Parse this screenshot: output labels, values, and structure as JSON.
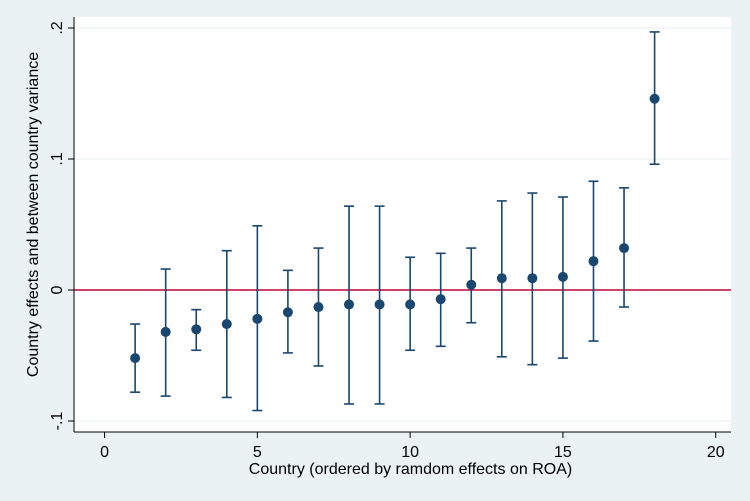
{
  "chart_data": {
    "type": "scatter",
    "subtype": "point-estimates-with-confidence-intervals",
    "xlabel": "Country (ordered by ramdom effects on ROA)",
    "ylabel": "Country effects and between country variance",
    "xlim": [
      -1,
      20.5
    ],
    "ylim": [
      -0.1,
      0.205
    ],
    "xticks": [
      0,
      5,
      10,
      15,
      20
    ],
    "xtick_labels": [
      "0",
      "5",
      "10",
      "15",
      "20"
    ],
    "yticks": [
      -0.1,
      0,
      0.1,
      0.2
    ],
    "ytick_labels": [
      "-.1",
      "0",
      ".1",
      ".2"
    ],
    "grid": true,
    "reference_line": {
      "y": 0
    },
    "points": [
      {
        "x": 1,
        "y": -0.052,
        "lo": -0.078,
        "hi": -0.026
      },
      {
        "x": 2,
        "y": -0.032,
        "lo": -0.081,
        "hi": 0.016
      },
      {
        "x": 3,
        "y": -0.03,
        "lo": -0.046,
        "hi": -0.015
      },
      {
        "x": 4,
        "y": -0.026,
        "lo": -0.082,
        "hi": 0.03
      },
      {
        "x": 5,
        "y": -0.022,
        "lo": -0.092,
        "hi": 0.049
      },
      {
        "x": 6,
        "y": -0.017,
        "lo": -0.048,
        "hi": 0.015
      },
      {
        "x": 7,
        "y": -0.013,
        "lo": -0.058,
        "hi": 0.032
      },
      {
        "x": 8,
        "y": -0.011,
        "lo": -0.087,
        "hi": 0.064
      },
      {
        "x": 9,
        "y": -0.011,
        "lo": -0.087,
        "hi": 0.064
      },
      {
        "x": 10,
        "y": -0.011,
        "lo": -0.046,
        "hi": 0.025
      },
      {
        "x": 11,
        "y": -0.007,
        "lo": -0.043,
        "hi": 0.028
      },
      {
        "x": 12,
        "y": 0.004,
        "lo": -0.025,
        "hi": 0.032
      },
      {
        "x": 13,
        "y": 0.009,
        "lo": -0.051,
        "hi": 0.068
      },
      {
        "x": 14,
        "y": 0.009,
        "lo": -0.057,
        "hi": 0.074
      },
      {
        "x": 15,
        "y": 0.01,
        "lo": -0.052,
        "hi": 0.071
      },
      {
        "x": 16,
        "y": 0.022,
        "lo": -0.039,
        "hi": 0.083
      },
      {
        "x": 17,
        "y": 0.032,
        "lo": -0.013,
        "hi": 0.078
      },
      {
        "x": 18,
        "y": 0.146,
        "lo": 0.096,
        "hi": 0.197
      }
    ],
    "colors": {
      "background": "#eaf2f3",
      "plot_background": "#ffffff",
      "marker": "#1a476f",
      "reference_line": "#c10534",
      "gridline": "#eaf2f3"
    }
  }
}
